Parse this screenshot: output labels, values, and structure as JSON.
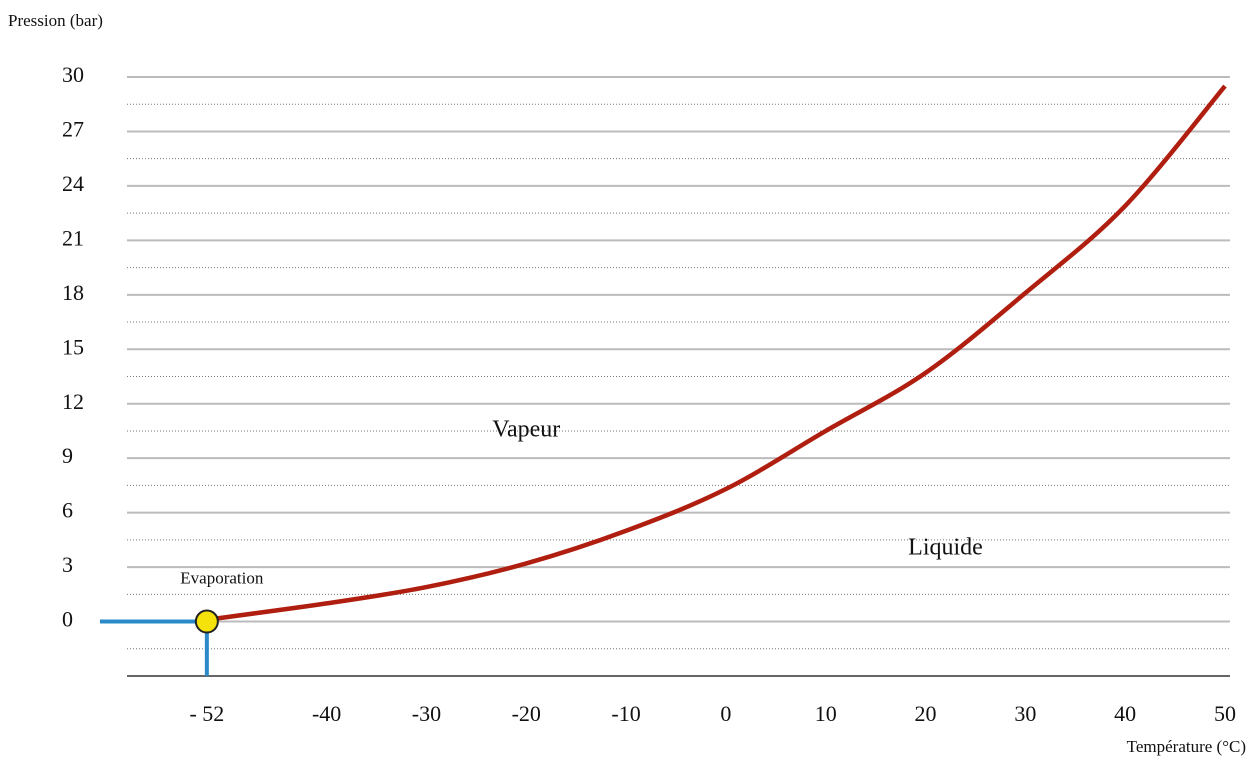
{
  "chart_data": {
    "type": "line",
    "y_label": "Pression (bar)",
    "x_label": "Température  (°C)",
    "xlim": [
      -60,
      50
    ],
    "ylim": [
      -3,
      30
    ],
    "yticks": [
      0,
      3,
      6,
      9,
      12,
      15,
      18,
      21,
      24,
      27,
      30
    ],
    "xticks": [
      {
        "value": -52,
        "label": "- 52"
      },
      -40,
      -30,
      -20,
      -10,
      0,
      10,
      20,
      30,
      40,
      50
    ],
    "grid": true,
    "series": [
      {
        "color": "#b01e10",
        "x": [
          -52,
          -40,
          -30,
          -20,
          -10,
          0,
          10,
          20,
          30,
          40,
          50
        ],
        "values": [
          0.1,
          1.0,
          1.9,
          3.2,
          5.0,
          7.3,
          10.5,
          13.7,
          18.1,
          22.9,
          29.5
        ]
      }
    ],
    "point": {
      "x": -52,
      "y": 0,
      "color": "#f5e20a",
      "guide_color": "#2a8ac8"
    },
    "annotations": [
      {
        "text": "Vapeur",
        "x": -20,
        "y": 10.5
      },
      {
        "text": "Liquide",
        "x": 22,
        "y": 4
      },
      {
        "text": "Evaporation",
        "x": -50.5,
        "y": 2.3
      }
    ]
  }
}
